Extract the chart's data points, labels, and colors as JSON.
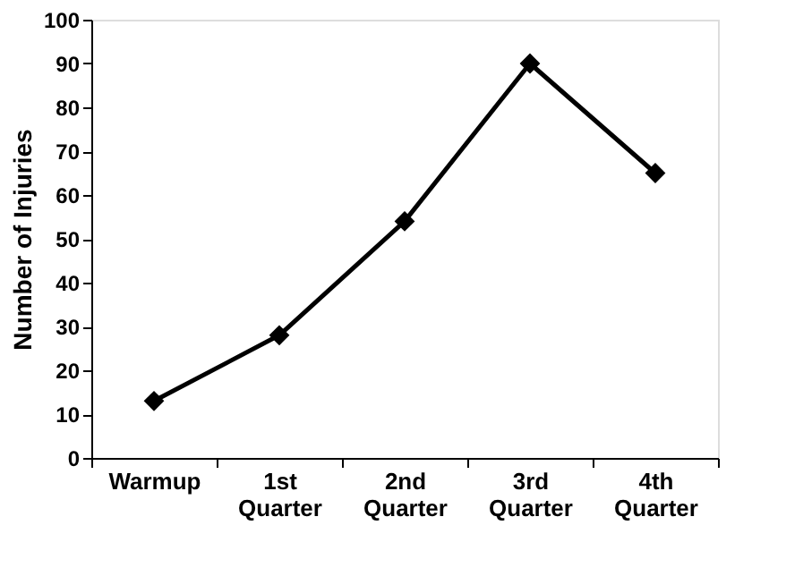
{
  "chart_data": {
    "type": "line",
    "ylabel": "Number of Injuries",
    "categories": [
      "Warmup",
      "1st Quarter",
      "2nd Quarter",
      "3rd Quarter",
      "4th Quarter"
    ],
    "series": [
      {
        "color": "#000000",
        "values": [
          13,
          28,
          54,
          90,
          65
        ]
      }
    ],
    "ylim": [
      0,
      100
    ],
    "yticks": [
      0,
      10,
      20,
      30,
      40,
      50,
      60,
      70,
      80,
      90,
      100
    ],
    "grid": false,
    "legend": false,
    "marker": "diamond",
    "line_style": "solid"
  }
}
